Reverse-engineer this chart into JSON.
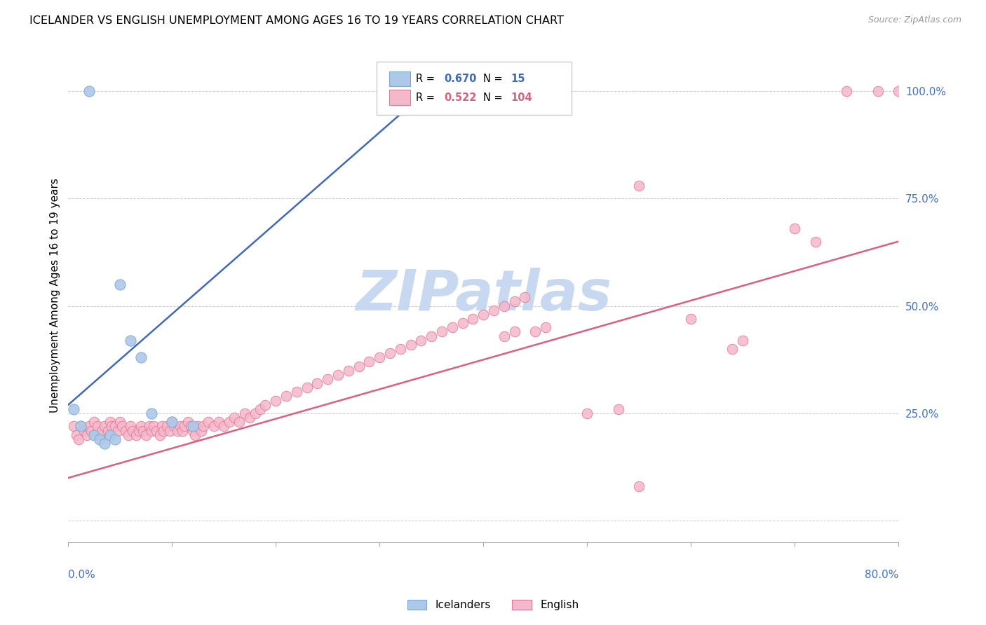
{
  "title": "ICELANDER VS ENGLISH UNEMPLOYMENT AMONG AGES 16 TO 19 YEARS CORRELATION CHART",
  "source": "Source: ZipAtlas.com",
  "ylabel": "Unemployment Among Ages 16 to 19 years",
  "xlim": [
    0.0,
    0.8
  ],
  "ylim": [
    -0.05,
    1.1
  ],
  "icelander_color": "#adc8e8",
  "icelander_edge_color": "#7aaacf",
  "english_color": "#f5b8cb",
  "english_edge_color": "#e07898",
  "icelander_line_color": "#4169b8",
  "english_line_color": "#d96080",
  "watermark": "ZIPatlas",
  "watermark_color": "#c8d8f0",
  "icelander_x": [
    0.005,
    0.012,
    0.02,
    0.025,
    0.03,
    0.035,
    0.04,
    0.045,
    0.05,
    0.06,
    0.07,
    0.08,
    0.1,
    0.12,
    0.35
  ],
  "icelander_y": [
    0.26,
    0.22,
    1.0,
    0.2,
    0.19,
    0.18,
    0.2,
    0.19,
    0.55,
    0.42,
    0.38,
    0.25,
    0.23,
    0.22,
    1.0
  ],
  "icelander_line_x0": 0.0,
  "icelander_line_y0": 0.27,
  "icelander_line_x1": 0.355,
  "icelander_line_y1": 1.02,
  "english_line_x0": 0.0,
  "english_line_y0": 0.1,
  "english_line_x1": 0.8,
  "english_line_y1": 0.65,
  "english_x": [
    0.005,
    0.008,
    0.01,
    0.012,
    0.015,
    0.018,
    0.02,
    0.022,
    0.025,
    0.028,
    0.03,
    0.032,
    0.035,
    0.038,
    0.04,
    0.042,
    0.045,
    0.048,
    0.05,
    0.052,
    0.055,
    0.058,
    0.06,
    0.062,
    0.065,
    0.068,
    0.07,
    0.072,
    0.075,
    0.078,
    0.08,
    0.082,
    0.085,
    0.088,
    0.09,
    0.092,
    0.095,
    0.098,
    0.1,
    0.102,
    0.105,
    0.108,
    0.11,
    0.112,
    0.115,
    0.118,
    0.12,
    0.122,
    0.125,
    0.128,
    0.13,
    0.135,
    0.14,
    0.145,
    0.15,
    0.155,
    0.16,
    0.165,
    0.17,
    0.175,
    0.18,
    0.185,
    0.19,
    0.2,
    0.21,
    0.22,
    0.23,
    0.24,
    0.25,
    0.26,
    0.27,
    0.28,
    0.29,
    0.3,
    0.31,
    0.32,
    0.33,
    0.34,
    0.35,
    0.36,
    0.37,
    0.38,
    0.39,
    0.4,
    0.41,
    0.42,
    0.43,
    0.44,
    0.45,
    0.46,
    0.42,
    0.43,
    0.5,
    0.53,
    0.55,
    0.6,
    0.64,
    0.65,
    0.7,
    0.72,
    0.75,
    0.78,
    0.8,
    0.55
  ],
  "english_y": [
    0.22,
    0.2,
    0.19,
    0.22,
    0.21,
    0.2,
    0.22,
    0.21,
    0.23,
    0.22,
    0.2,
    0.21,
    0.22,
    0.21,
    0.23,
    0.22,
    0.22,
    0.21,
    0.23,
    0.22,
    0.21,
    0.2,
    0.22,
    0.21,
    0.2,
    0.21,
    0.22,
    0.21,
    0.2,
    0.22,
    0.21,
    0.22,
    0.21,
    0.2,
    0.22,
    0.21,
    0.22,
    0.21,
    0.23,
    0.22,
    0.21,
    0.22,
    0.21,
    0.22,
    0.23,
    0.22,
    0.21,
    0.2,
    0.22,
    0.21,
    0.22,
    0.23,
    0.22,
    0.23,
    0.22,
    0.23,
    0.24,
    0.23,
    0.25,
    0.24,
    0.25,
    0.26,
    0.27,
    0.28,
    0.29,
    0.3,
    0.31,
    0.32,
    0.33,
    0.34,
    0.35,
    0.36,
    0.37,
    0.38,
    0.39,
    0.4,
    0.41,
    0.42,
    0.43,
    0.44,
    0.45,
    0.46,
    0.47,
    0.48,
    0.49,
    0.5,
    0.51,
    0.52,
    0.44,
    0.45,
    0.43,
    0.44,
    0.25,
    0.26,
    0.78,
    0.47,
    0.4,
    0.42,
    0.68,
    0.65,
    1.0,
    1.0,
    1.0,
    0.08
  ]
}
